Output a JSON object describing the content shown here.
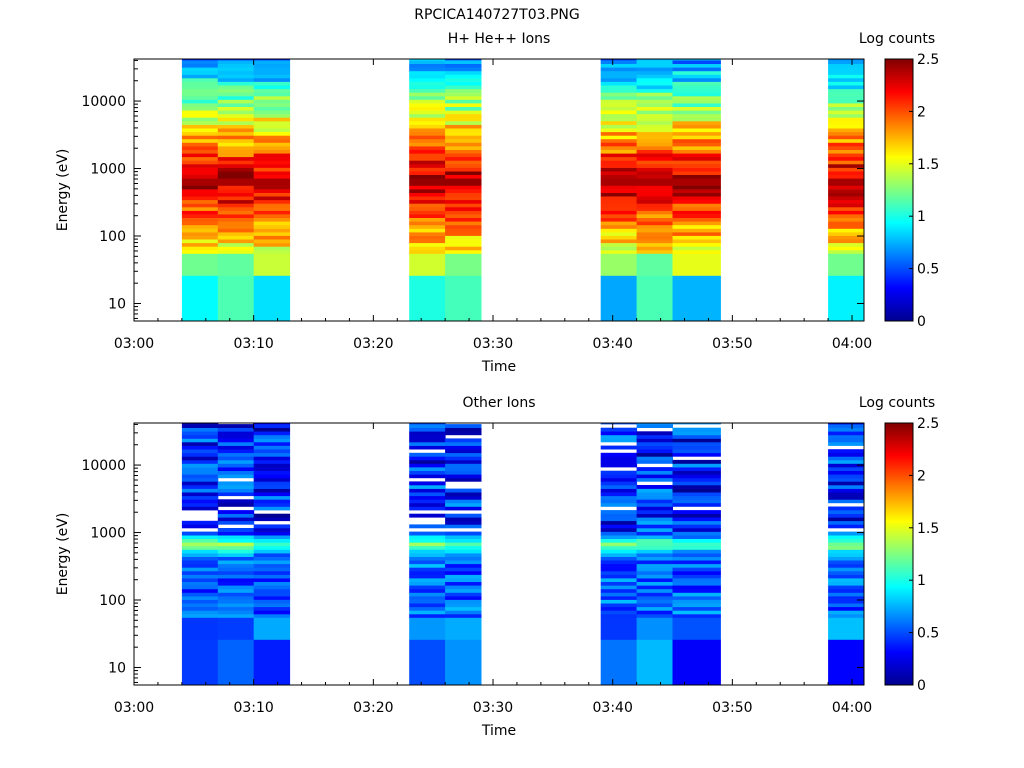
{
  "figure_title": "RPCICA140727T03.PNG",
  "chart_data": [
    {
      "type": "heatmap",
      "title": "H+ He++ Ions",
      "xlabel": "Time",
      "ylabel": "Energy (eV)",
      "x_ticks": [
        "03:00",
        "03:10",
        "03:20",
        "03:30",
        "03:40",
        "03:50",
        "04:00"
      ],
      "y_ticks": [
        "10",
        "100",
        "1000",
        "10000"
      ],
      "y_scale": "log",
      "ylim": [
        5.5,
        42000
      ],
      "xlim": [
        "03:00",
        "04:01"
      ],
      "colorbar": {
        "label": "Log counts",
        "range": [
          0,
          2.5
        ],
        "ticks": [
          "0",
          "0.5",
          "1",
          "1.5",
          "2",
          "2.5"
        ]
      },
      "data_intervals": [
        [
          "03:04",
          "03:14"
        ],
        [
          "03:23",
          "03:29"
        ],
        [
          "03:39",
          "03:49"
        ],
        [
          "03:58",
          "04:01"
        ]
      ],
      "time_bins": [
        {
          "start": "03:04",
          "end": "03:07",
          "peak_energy_ev": 650,
          "peak_log_counts": 2.4
        },
        {
          "start": "03:07",
          "end": "03:10",
          "peak_energy_ev": 650,
          "peak_log_counts": 2.4
        },
        {
          "start": "03:10",
          "end": "03:13",
          "peak_energy_ev": 650,
          "peak_log_counts": 2.4
        },
        {
          "start": "03:23",
          "end": "03:26",
          "peak_energy_ev": 650,
          "peak_log_counts": 2.45
        },
        {
          "start": "03:26",
          "end": "03:29",
          "peak_energy_ev": 650,
          "peak_log_counts": 2.45
        },
        {
          "start": "03:39",
          "end": "03:42",
          "peak_energy_ev": 650,
          "peak_log_counts": 2.4
        },
        {
          "start": "03:42",
          "end": "03:45",
          "peak_energy_ev": 650,
          "peak_log_counts": 2.4
        },
        {
          "start": "03:45",
          "end": "03:49",
          "peak_energy_ev": 650,
          "peak_log_counts": 2.4
        },
        {
          "start": "03:58",
          "end": "04:01",
          "peak_energy_ev": 650,
          "peak_log_counts": 2.4
        }
      ],
      "grid": false
    },
    {
      "type": "heatmap",
      "title": "Other Ions",
      "xlabel": "Time",
      "ylabel": "Energy (eV)",
      "x_ticks": [
        "03:00",
        "03:10",
        "03:20",
        "03:30",
        "03:40",
        "03:50",
        "04:00"
      ],
      "y_ticks": [
        "10",
        "100",
        "1000",
        "10000"
      ],
      "y_scale": "log",
      "ylim": [
        5.5,
        42000
      ],
      "xlim": [
        "03:00",
        "04:01"
      ],
      "colorbar": {
        "label": "Log counts",
        "range": [
          0,
          2.5
        ],
        "ticks": [
          "0",
          "0.5",
          "1",
          "1.5",
          "2",
          "2.5"
        ]
      },
      "data_intervals": [
        [
          "03:04",
          "03:14"
        ],
        [
          "03:23",
          "03:29"
        ],
        [
          "03:39",
          "03:49"
        ],
        [
          "03:58",
          "04:01"
        ]
      ],
      "time_bins": [
        {
          "start": "03:04",
          "end": "03:07",
          "peak_energy_ev": 650,
          "peak_log_counts": 1.3
        },
        {
          "start": "03:07",
          "end": "03:10",
          "peak_energy_ev": 650,
          "peak_log_counts": 1.3
        },
        {
          "start": "03:10",
          "end": "03:13",
          "peak_energy_ev": 650,
          "peak_log_counts": 1.2
        },
        {
          "start": "03:23",
          "end": "03:26",
          "peak_energy_ev": 650,
          "peak_log_counts": 1.3
        },
        {
          "start": "03:26",
          "end": "03:29",
          "peak_energy_ev": 650,
          "peak_log_counts": 1.2
        },
        {
          "start": "03:39",
          "end": "03:42",
          "peak_energy_ev": 650,
          "peak_log_counts": 1.3
        },
        {
          "start": "03:42",
          "end": "03:45",
          "peak_energy_ev": 650,
          "peak_log_counts": 1.3
        },
        {
          "start": "03:45",
          "end": "03:49",
          "peak_energy_ev": 650,
          "peak_log_counts": 1.1
        },
        {
          "start": "03:58",
          "end": "04:01",
          "peak_energy_ev": 650,
          "peak_log_counts": 1.3
        }
      ],
      "grid": false
    }
  ]
}
